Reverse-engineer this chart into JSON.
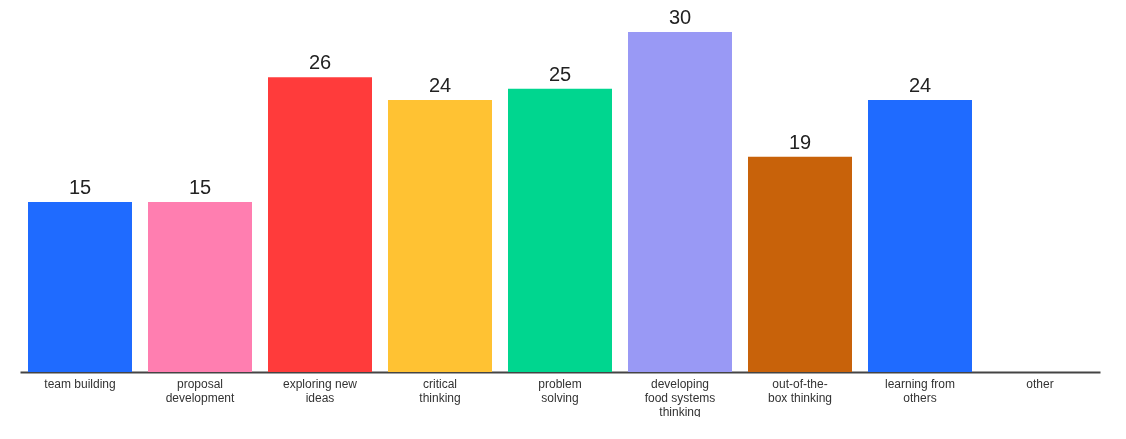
{
  "chart_data": {
    "type": "bar",
    "categories": [
      "team building",
      "proposal development",
      "exploring new ideas",
      "critical thinking",
      "problem solving",
      "developing food systems thinking",
      "out-of-the-box thinking",
      "learning from others",
      "other"
    ],
    "values": [
      15,
      15,
      26,
      24,
      25,
      30,
      19,
      24,
      null
    ],
    "colors": [
      "#1f6bff",
      "#ff7eb0",
      "#ff3b3b",
      "#ffc233",
      "#00d68f",
      "#9999f5",
      "#c8620a",
      "#1f6bff",
      "#1f6bff"
    ],
    "data_labels": true,
    "grid": false
  }
}
